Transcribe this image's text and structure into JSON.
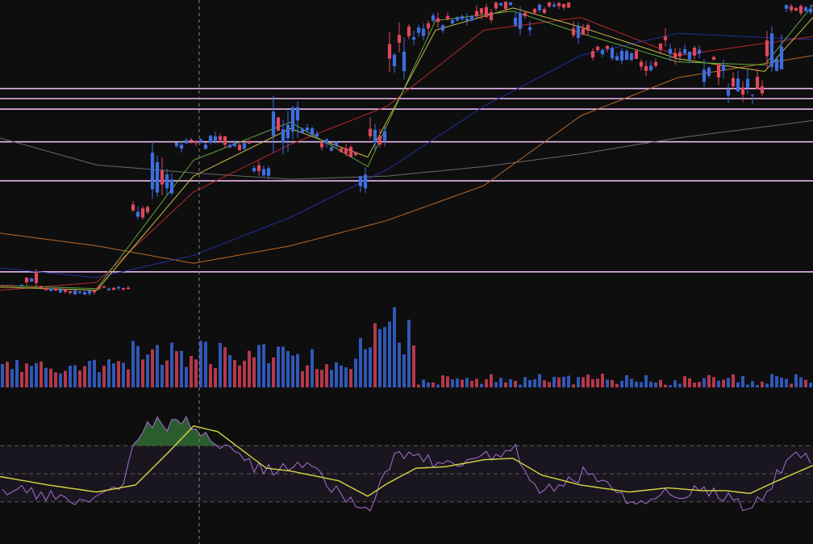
{
  "colors": {
    "background": "#0e0e0f",
    "candle_up": "#e0485a",
    "candle_down": "#3d6ee0",
    "volume_up": "#b8384a",
    "volume_down": "#2f58b8",
    "horizontal_levels": "#e8b8ee",
    "crosshair": "#8a8a8a",
    "rsi_line": "#a86fd0",
    "rsi_signal": "#d8d840",
    "rsi_band": "#1a1620",
    "rsi_overbought_fill": "#2f6a34",
    "ma_fast": "#62a838",
    "ma_mid": "#c8c040",
    "ma_red": "#b82828",
    "ma_blue": "#2230a0",
    "ma_orange": "#b86a28",
    "ma_gray": "#6a6a6a"
  },
  "chart_data": {
    "type": "candlestick",
    "title": "",
    "xlabel": "",
    "ylabel": "",
    "price_scale": [
      0,
      100
    ],
    "candle_count": 168,
    "price_segments": [
      {
        "from": 0,
        "to": 5,
        "low": 10.3,
        "high": 10.8
      },
      {
        "from": 5,
        "to": 8,
        "low": 11.2,
        "high": 14.5
      },
      {
        "from": 8,
        "to": 12,
        "low": 8.5,
        "high": 10.5
      },
      {
        "from": 12,
        "to": 20,
        "low": 7.5,
        "high": 9.3
      },
      {
        "from": 20,
        "to": 27,
        "low": 9.0,
        "high": 10.5
      },
      {
        "from": 27,
        "to": 31,
        "low": 31.5,
        "high": 37.0
      },
      {
        "from": 31,
        "to": 36,
        "low": 38.0,
        "high": 52.5
      },
      {
        "from": 36,
        "to": 43,
        "low": 53.0,
        "high": 56.5
      },
      {
        "from": 43,
        "to": 47,
        "low": 54.5,
        "high": 58.5
      },
      {
        "from": 47,
        "to": 52,
        "low": 53.0,
        "high": 56.0
      },
      {
        "from": 52,
        "to": 56,
        "low": 45.0,
        "high": 49.0
      },
      {
        "from": 56,
        "to": 62,
        "low": 53.0,
        "high": 67.0
      },
      {
        "from": 62,
        "to": 66,
        "low": 57.5,
        "high": 60.5
      },
      {
        "from": 66,
        "to": 70,
        "low": 53.0,
        "high": 57.5
      },
      {
        "from": 70,
        "to": 74,
        "low": 51.0,
        "high": 55.0
      },
      {
        "from": 74,
        "to": 76,
        "low": 40.5,
        "high": 47.0
      },
      {
        "from": 76,
        "to": 80,
        "low": 53.0,
        "high": 62.0
      },
      {
        "from": 80,
        "to": 84,
        "low": 78.0,
        "high": 90.0
      },
      {
        "from": 84,
        "to": 88,
        "low": 88.0,
        "high": 93.5
      },
      {
        "from": 88,
        "to": 92,
        "low": 90.5,
        "high": 96.0
      },
      {
        "from": 92,
        "to": 96,
        "low": 92.0,
        "high": 95.5
      },
      {
        "from": 96,
        "to": 102,
        "low": 94.0,
        "high": 99.0
      },
      {
        "from": 102,
        "to": 106,
        "low": 97.5,
        "high": 100
      },
      {
        "from": 106,
        "to": 110,
        "low": 91.0,
        "high": 96.5
      },
      {
        "from": 110,
        "to": 114,
        "low": 96.0,
        "high": 100
      },
      {
        "from": 114,
        "to": 118,
        "low": 97.5,
        "high": 100
      },
      {
        "from": 118,
        "to": 122,
        "low": 87.0,
        "high": 93.0
      },
      {
        "from": 122,
        "to": 128,
        "low": 81.5,
        "high": 86.0
      },
      {
        "from": 128,
        "to": 132,
        "low": 81.0,
        "high": 85.0
      },
      {
        "from": 132,
        "to": 136,
        "low": 77.5,
        "high": 82.5
      },
      {
        "from": 136,
        "to": 140,
        "low": 82.0,
        "high": 89.0
      },
      {
        "from": 140,
        "to": 145,
        "low": 81.0,
        "high": 85.5
      },
      {
        "from": 145,
        "to": 150,
        "low": 74.0,
        "high": 82.5
      },
      {
        "from": 150,
        "to": 154,
        "low": 69.5,
        "high": 76.0
      },
      {
        "from": 154,
        "to": 158,
        "low": 70.5,
        "high": 78.0
      },
      {
        "from": 158,
        "to": 162,
        "low": 78.0,
        "high": 90.0
      },
      {
        "from": 162,
        "to": 168,
        "low": 96.0,
        "high": 100
      }
    ],
    "horizontal_levels": [
      72.6,
      69.4,
      66.1,
      55.8,
      43.5,
      14.8
    ],
    "crosshair_x_fraction": 0.245,
    "moving_averages": [
      {
        "key": "ma_gray",
        "points": [
          [
            0,
            57
          ],
          [
            20,
            48.5
          ],
          [
            40,
            46
          ],
          [
            60,
            44
          ],
          [
            80,
            45
          ],
          [
            100,
            48
          ],
          [
            120,
            52
          ],
          [
            140,
            57
          ],
          [
            168,
            62.5
          ]
        ]
      },
      {
        "key": "ma_orange",
        "points": [
          [
            0,
            27
          ],
          [
            20,
            23
          ],
          [
            40,
            17.5
          ],
          [
            60,
            23
          ],
          [
            80,
            31
          ],
          [
            100,
            42
          ],
          [
            120,
            64
          ],
          [
            140,
            76
          ],
          [
            168,
            83
          ]
        ]
      },
      {
        "key": "ma_blue",
        "points": [
          [
            0,
            16
          ],
          [
            20,
            13
          ],
          [
            40,
            20
          ],
          [
            60,
            32
          ],
          [
            80,
            47
          ],
          [
            100,
            67
          ],
          [
            120,
            83
          ],
          [
            140,
            90
          ],
          [
            168,
            88
          ]
        ]
      },
      {
        "key": "ma_red",
        "points": [
          [
            0,
            9
          ],
          [
            20,
            11.5
          ],
          [
            40,
            40
          ],
          [
            60,
            55
          ],
          [
            80,
            67
          ],
          [
            100,
            91
          ],
          [
            120,
            95
          ],
          [
            140,
            83
          ],
          [
            168,
            89
          ]
        ]
      },
      {
        "key": "ma_mid",
        "points": [
          [
            0,
            10
          ],
          [
            20,
            9
          ],
          [
            40,
            45
          ],
          [
            60,
            60
          ],
          [
            76,
            51
          ],
          [
            90,
            91
          ],
          [
            106,
            98
          ],
          [
            120,
            92
          ],
          [
            140,
            82
          ],
          [
            158,
            78
          ],
          [
            168,
            95
          ]
        ]
      },
      {
        "key": "ma_fast",
        "points": [
          [
            0,
            10.5
          ],
          [
            20,
            9.5
          ],
          [
            40,
            50
          ],
          [
            60,
            62
          ],
          [
            76,
            48
          ],
          [
            90,
            94
          ],
          [
            106,
            97
          ],
          [
            120,
            90
          ],
          [
            140,
            81
          ],
          [
            158,
            80
          ],
          [
            168,
            99
          ]
        ]
      }
    ],
    "volume_segments": [
      {
        "from": 0,
        "to": 27,
        "low": 0.12,
        "high": 0.25
      },
      {
        "from": 27,
        "to": 56,
        "low": 0.15,
        "high": 0.4
      },
      {
        "from": 56,
        "to": 62,
        "low": 0.25,
        "high": 0.35
      },
      {
        "from": 62,
        "to": 74,
        "low": 0.12,
        "high": 0.33
      },
      {
        "from": 74,
        "to": 86,
        "low": 0.25,
        "high": 0.62
      },
      {
        "from": 86,
        "to": 168,
        "low": 0.02,
        "high": 0.12
      }
    ],
    "rsi_range": [
      0,
      100
    ],
    "rsi_levels": [
      70,
      50,
      30
    ],
    "rsi_points": [
      [
        0,
        38
      ],
      [
        5,
        37
      ],
      [
        10,
        33
      ],
      [
        15,
        32
      ],
      [
        20,
        37
      ],
      [
        25,
        45
      ],
      [
        28,
        78
      ],
      [
        30,
        88
      ],
      [
        34,
        84
      ],
      [
        38,
        86
      ],
      [
        42,
        80
      ],
      [
        45,
        70
      ],
      [
        50,
        57
      ],
      [
        55,
        52
      ],
      [
        60,
        56
      ],
      [
        65,
        54
      ],
      [
        70,
        33
      ],
      [
        74,
        24
      ],
      [
        76,
        20
      ],
      [
        78,
        45
      ],
      [
        82,
        67
      ],
      [
        86,
        62
      ],
      [
        90,
        55
      ],
      [
        95,
        58
      ],
      [
        100,
        62
      ],
      [
        106,
        66
      ],
      [
        110,
        38
      ],
      [
        115,
        40
      ],
      [
        120,
        50
      ],
      [
        125,
        40
      ],
      [
        130,
        30
      ],
      [
        135,
        34
      ],
      [
        140,
        37
      ],
      [
        145,
        40
      ],
      [
        150,
        32
      ],
      [
        155,
        25
      ],
      [
        158,
        38
      ],
      [
        162,
        60
      ],
      [
        168,
        62
      ]
    ],
    "rsi_signal_points": [
      [
        0,
        48
      ],
      [
        10,
        42
      ],
      [
        20,
        37
      ],
      [
        28,
        42
      ],
      [
        35,
        66
      ],
      [
        40,
        84
      ],
      [
        45,
        80
      ],
      [
        50,
        67
      ],
      [
        55,
        54
      ],
      [
        60,
        52
      ],
      [
        70,
        45
      ],
      [
        76,
        34
      ],
      [
        80,
        43
      ],
      [
        86,
        54
      ],
      [
        92,
        55
      ],
      [
        100,
        60
      ],
      [
        106,
        61
      ],
      [
        112,
        49
      ],
      [
        120,
        42
      ],
      [
        130,
        37
      ],
      [
        138,
        40
      ],
      [
        145,
        38
      ],
      [
        150,
        38
      ],
      [
        155,
        36
      ],
      [
        160,
        44
      ],
      [
        168,
        56
      ]
    ]
  }
}
